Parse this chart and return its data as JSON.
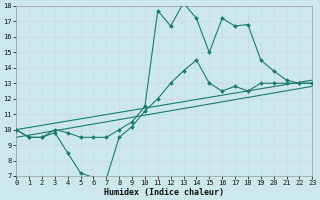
{
  "xlabel": "Humidex (Indice chaleur)",
  "xlim": [
    0,
    23
  ],
  "ylim": [
    7,
    18
  ],
  "xticks": [
    0,
    1,
    2,
    3,
    4,
    5,
    6,
    7,
    8,
    9,
    10,
    11,
    12,
    13,
    14,
    15,
    16,
    17,
    18,
    19,
    20,
    21,
    22,
    23
  ],
  "yticks": [
    7,
    8,
    9,
    10,
    11,
    12,
    13,
    14,
    15,
    16,
    17,
    18
  ],
  "bg_color": "#cce8ed",
  "grid_color": "#c8dde0",
  "line_color": "#1a7a6e",
  "line_width": 0.8,
  "marker_size": 2.0,
  "line_upper": {
    "x": [
      0,
      1,
      2,
      3,
      4,
      5,
      6,
      7,
      8,
      9,
      10,
      11,
      12,
      13,
      14,
      15,
      16,
      17,
      18,
      19,
      20,
      21,
      22,
      23
    ],
    "y": [
      10.0,
      9.5,
      9.5,
      10.0,
      9.8,
      9.5,
      9.5,
      9.5,
      10.0,
      10.5,
      11.5,
      17.7,
      16.7,
      18.2,
      17.2,
      15.0,
      17.2,
      16.7,
      16.8,
      14.5,
      13.8,
      13.2,
      13.0,
      13.0
    ],
    "markers": true
  },
  "line_lower": {
    "x": [
      0,
      1,
      2,
      3,
      4,
      5,
      6,
      7,
      8,
      9,
      10,
      11,
      12,
      13,
      14,
      15,
      16,
      17,
      18,
      19,
      20,
      21,
      22,
      23
    ],
    "y": [
      10.0,
      9.5,
      9.5,
      9.8,
      8.5,
      7.2,
      6.9,
      6.8,
      9.5,
      10.2,
      11.2,
      12.0,
      13.0,
      13.8,
      14.5,
      13.0,
      12.5,
      12.8,
      12.5,
      13.0,
      13.0,
      13.0,
      13.0,
      13.0
    ],
    "markers": true
  },
  "line_mid_upper": {
    "x": [
      0,
      23
    ],
    "y": [
      10.0,
      13.2
    ],
    "markers": false
  },
  "line_mid_lower": {
    "x": [
      0,
      23
    ],
    "y": [
      9.5,
      12.8
    ],
    "markers": false
  }
}
